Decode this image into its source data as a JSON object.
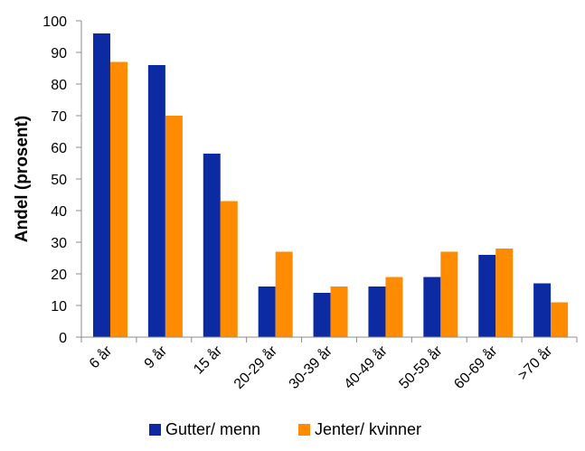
{
  "chart_data": {
    "type": "bar",
    "title": "",
    "xlabel": "",
    "ylabel": "Andel (prosent)",
    "ylim": [
      0,
      100
    ],
    "yticks": [
      0,
      10,
      20,
      30,
      40,
      50,
      60,
      70,
      80,
      90,
      100
    ],
    "grid": false,
    "legend_position": "bottom",
    "categories": [
      "6 år",
      "9 år",
      "15 år",
      "20-29 år",
      "30-39 år",
      "40-49 år",
      "50-59 år",
      "60-69 år",
      ">70 år"
    ],
    "series": [
      {
        "name": "Gutter/ menn",
        "color": "#0c2ba3",
        "values": [
          96,
          86,
          58,
          16,
          14,
          16,
          19,
          26,
          17
        ]
      },
      {
        "name": "Jenter/ kvinner",
        "color": "#ff8c00",
        "values": [
          87,
          70,
          43,
          27,
          16,
          19,
          27,
          28,
          11
        ]
      }
    ],
    "axis_color": "#8c8c8c"
  }
}
